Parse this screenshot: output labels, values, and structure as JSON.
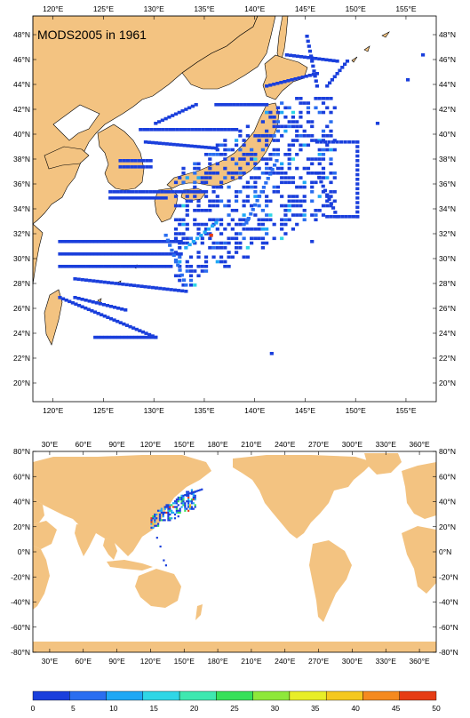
{
  "title": "MODS2005 in 1961",
  "land_color": "#f3c381",
  "ocean_color": "#ffffff",
  "top_map": {
    "lon_ticks": [
      "120°E",
      "125°E",
      "130°E",
      "135°E",
      "140°E",
      "145°E",
      "150°E",
      "155°E"
    ],
    "lat_ticks": [
      "48°N",
      "46°N",
      "44°N",
      "42°N",
      "40°N",
      "38°N",
      "36°N",
      "34°N",
      "32°N",
      "30°N",
      "28°N",
      "26°N",
      "24°N",
      "22°N",
      "20°N"
    ],
    "lon_range": [
      118,
      158
    ],
    "lat_range": [
      18.5,
      49.5
    ]
  },
  "bottom_map": {
    "lon_ticks": [
      "30°E",
      "60°E",
      "90°E",
      "120°E",
      "150°E",
      "180°E",
      "210°E",
      "240°E",
      "270°E",
      "300°E",
      "330°E",
      "360°E"
    ],
    "lat_ticks": [
      "80°N",
      "60°N",
      "40°N",
      "20°N",
      "0°N",
      "-20°N",
      "-40°N",
      "-60°N",
      "-80°N"
    ],
    "lon_range": [
      15,
      375
    ],
    "lat_range": [
      -80,
      80
    ]
  },
  "colorbar": {
    "labels": [
      "0",
      "5",
      "10",
      "15",
      "20",
      "25",
      "30",
      "35",
      "40",
      "45",
      "50"
    ],
    "colors": [
      "#1a3fdc",
      "#2a6ef0",
      "#1fa8f5",
      "#2fd6e6",
      "#3ee8b0",
      "#36e05a",
      "#8ee83a",
      "#e8ee28",
      "#f5c81f",
      "#f58a1f",
      "#e63c14"
    ]
  }
}
